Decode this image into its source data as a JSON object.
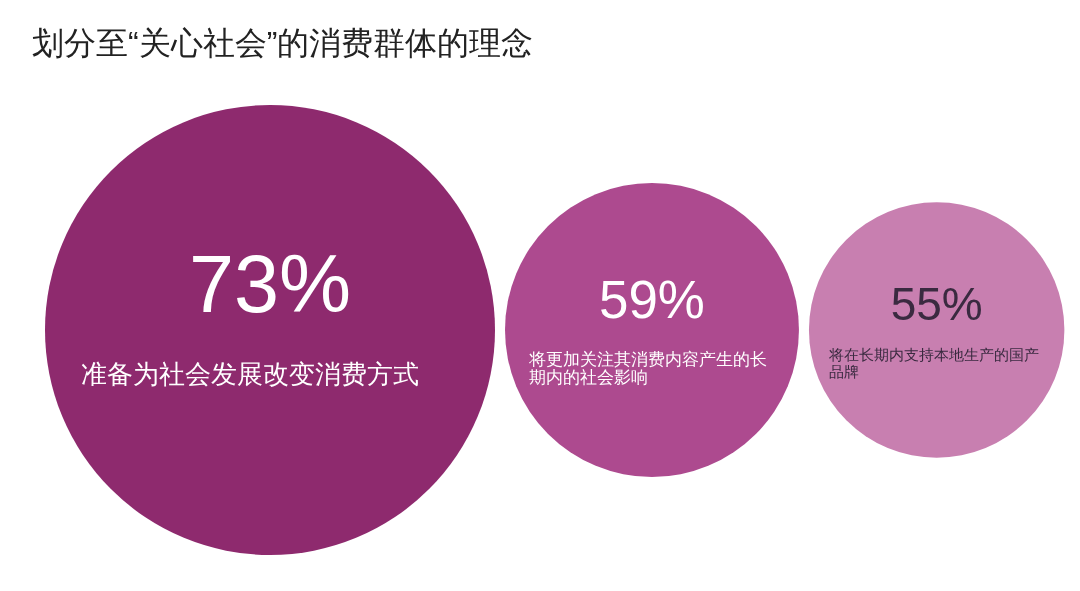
{
  "chart_data": {
    "type": "other",
    "title": "划分至“关心社会”的消费群体的理念",
    "categories": [
      "准备为社会发展改变消费方式",
      "将更加关注其消费内容产生的长期内的社会影响",
      "将在长期内支持本地生产的国产品牌"
    ],
    "values": [
      73,
      59,
      55
    ],
    "value_labels": [
      "73%",
      "59%",
      "55%"
    ],
    "colors": [
      "#8e2a6e",
      "#ad4a8f",
      "#c87fb0"
    ]
  }
}
